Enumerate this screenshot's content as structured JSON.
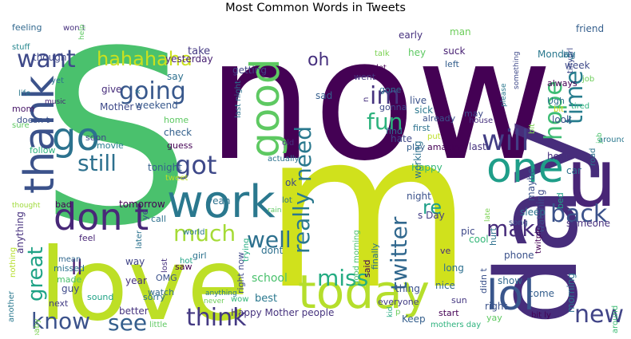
{
  "chart_data": {
    "type": "wordcloud",
    "title": "Most Common Words in Tweets",
    "background": "#ffffff",
    "colormap": "viridis",
    "words": [
      {
        "text": "now",
        "weight": 1.0,
        "color": "#440154"
      },
      {
        "text": "S",
        "weight": 0.98,
        "color": "#4ac16d"
      },
      {
        "text": "m",
        "weight": 0.92,
        "color": "#d0e11c"
      },
      {
        "text": "love",
        "weight": 0.78,
        "color": "#bddf26"
      },
      {
        "text": "day",
        "weight": 0.68,
        "color": "#472d7b"
      },
      {
        "text": "u",
        "weight": 0.55,
        "color": "#482576"
      },
      {
        "text": "work",
        "weight": 0.52,
        "color": "#2a788e"
      },
      {
        "text": "today",
        "weight": 0.5,
        "color": "#b5de2b"
      },
      {
        "text": "good",
        "weight": 0.46,
        "color": "#5ec962"
      },
      {
        "text": "thank",
        "weight": 0.46,
        "color": "#3b528b"
      },
      {
        "text": "one",
        "weight": 0.45,
        "color": "#1f9e89"
      },
      {
        "text": "lol",
        "weight": 0.44,
        "color": "#39568c"
      },
      {
        "text": "go",
        "weight": 0.43,
        "color": "#2c728e"
      },
      {
        "text": "don t",
        "weight": 0.42,
        "color": "#482878"
      },
      {
        "text": "will",
        "weight": 0.36,
        "color": "#433e85"
      },
      {
        "text": "got",
        "weight": 0.33,
        "color": "#3e4989"
      },
      {
        "text": "going",
        "weight": 0.32,
        "color": "#38588c"
      },
      {
        "text": "im",
        "weight": 0.31,
        "color": "#46337e"
      },
      {
        "text": "time",
        "weight": 0.31,
        "color": "#287d8e"
      },
      {
        "text": "back",
        "weight": 0.29,
        "color": "#3b528b"
      },
      {
        "text": "new",
        "weight": 0.29,
        "color": "#414487"
      },
      {
        "text": "know",
        "weight": 0.28,
        "color": "#3b528b"
      },
      {
        "text": "think",
        "weight": 0.28,
        "color": "#443983"
      },
      {
        "text": "want",
        "weight": 0.28,
        "color": "#3e4989"
      },
      {
        "text": "still",
        "weight": 0.28,
        "color": "#2d708e"
      },
      {
        "text": "really",
        "weight": 0.28,
        "color": "#2a788e"
      },
      {
        "text": "twitter",
        "weight": 0.28,
        "color": "#31688e"
      },
      {
        "text": "much",
        "weight": 0.28,
        "color": "#a5db36"
      },
      {
        "text": "well",
        "weight": 0.28,
        "color": "#2d708e"
      },
      {
        "text": "miss",
        "weight": 0.28,
        "color": "#25ac82"
      },
      {
        "text": "see",
        "weight": 0.27,
        "color": "#355f8d"
      },
      {
        "text": "hope",
        "weight": 0.27,
        "color": "#3dbc74"
      },
      {
        "text": "need",
        "weight": 0.27,
        "color": "#2a788e"
      },
      {
        "text": "make",
        "weight": 0.26,
        "color": "#472c7a"
      },
      {
        "text": "fun",
        "weight": 0.25,
        "color": "#2db27d"
      },
      {
        "text": "great",
        "weight": 0.24,
        "color": "#20a386"
      },
      {
        "text": "hahahaha",
        "weight": 0.24,
        "color": "#cae11f"
      },
      {
        "text": "oh",
        "weight": 0.22,
        "color": "#46307e"
      },
      {
        "text": "re",
        "weight": 0.22,
        "color": "#1fa088"
      },
      {
        "text": "ll",
        "weight": 0.22,
        "color": "#481f70"
      }
    ]
  }
}
